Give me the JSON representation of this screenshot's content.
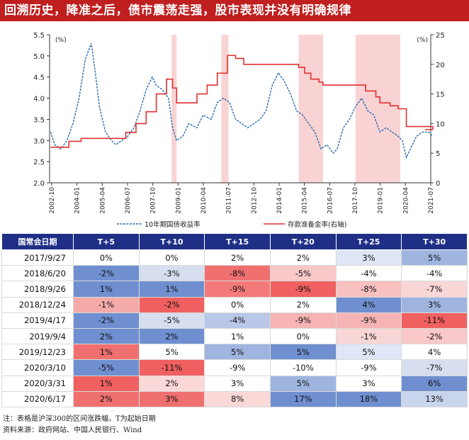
{
  "title": "回溯历史，降准之后，债市震荡走强，股市表现并没有明确规律",
  "chart_data": {
    "type": "line",
    "x_ticks": [
      "2002-10",
      "2004-01",
      "2005-04",
      "2006-07",
      "2007-10",
      "2009-01",
      "2010-04",
      "2011-07",
      "2012-10",
      "2014-01",
      "2015-04",
      "2016-07",
      "2017-10",
      "2019-01",
      "2020-04",
      "2021-07"
    ],
    "y_left": {
      "label": "(%)",
      "min": 2.0,
      "max": 5.5,
      "ticks": [
        "2.0",
        "2.5",
        "3.0",
        "3.5",
        "4.0",
        "4.5",
        "5.0",
        "5.5"
      ]
    },
    "y_right": {
      "label": "(%)",
      "min": 0,
      "max": 25,
      "ticks": [
        "0",
        "5",
        "10",
        "15",
        "20",
        "25"
      ]
    },
    "shaded_periods": [
      [
        2008.75,
        2009.0
      ],
      [
        2011.2,
        2011.55
      ],
      [
        2015.0,
        2016.2
      ],
      [
        2017.8,
        2020.0
      ]
    ],
    "series": [
      {
        "name": "10年期国债收益率",
        "axis": "left",
        "color": "#2b6cb0",
        "style": "dashed",
        "x": [
          2002.8,
          2003.0,
          2003.3,
          2003.6,
          2003.9,
          2004.2,
          2004.5,
          2004.8,
          2005.0,
          2005.2,
          2005.5,
          2005.8,
          2006.0,
          2006.3,
          2006.6,
          2006.9,
          2007.2,
          2007.5,
          2007.8,
          2008.0,
          2008.3,
          2008.6,
          2008.8,
          2009.0,
          2009.3,
          2009.6,
          2010.0,
          2010.3,
          2010.7,
          2011.0,
          2011.3,
          2011.6,
          2011.9,
          2012.2,
          2012.5,
          2012.8,
          2013.1,
          2013.4,
          2013.7,
          2014.0,
          2014.3,
          2014.6,
          2014.9,
          2015.2,
          2015.5,
          2015.8,
          2016.1,
          2016.4,
          2016.7,
          2016.9,
          2017.2,
          2017.5,
          2017.8,
          2018.1,
          2018.4,
          2018.7,
          2019.0,
          2019.3,
          2019.6,
          2019.9,
          2020.1,
          2020.3,
          2020.5,
          2020.8,
          2021.1,
          2021.4,
          2021.6
        ],
        "y": [
          3.2,
          2.9,
          2.8,
          3.0,
          3.4,
          4.0,
          4.9,
          5.3,
          4.6,
          3.8,
          3.2,
          3.0,
          2.9,
          3.0,
          3.1,
          3.3,
          3.7,
          4.2,
          4.5,
          4.3,
          4.2,
          4.0,
          3.3,
          3.0,
          3.1,
          3.4,
          3.3,
          3.6,
          3.5,
          3.9,
          4.0,
          3.9,
          3.5,
          3.4,
          3.3,
          3.4,
          3.5,
          3.7,
          4.3,
          4.6,
          4.4,
          4.1,
          3.7,
          3.6,
          3.4,
          3.2,
          2.8,
          2.9,
          2.7,
          2.8,
          3.3,
          3.5,
          3.8,
          4.0,
          3.7,
          3.6,
          3.2,
          3.3,
          3.2,
          3.1,
          3.0,
          2.6,
          2.8,
          3.1,
          3.2,
          3.2,
          3.1
        ]
      },
      {
        "name": "存款准备金率(右轴)",
        "axis": "right",
        "color": "#e03030",
        "style": "step",
        "x": [
          2002.8,
          2003.7,
          2004.3,
          2006.5,
          2007.0,
          2007.5,
          2008.0,
          2008.5,
          2008.8,
          2009.0,
          2010.0,
          2010.5,
          2011.0,
          2011.5,
          2011.9,
          2012.3,
          2015.0,
          2015.3,
          2015.6,
          2016.0,
          2016.2,
          2018.0,
          2018.3,
          2018.8,
          2019.0,
          2019.5,
          2019.9,
          2020.3,
          2021.6
        ],
        "y": [
          6,
          7,
          7.5,
          8.5,
          10,
          12,
          15,
          17.5,
          16,
          13.5,
          15,
          16.5,
          18.5,
          21.5,
          21,
          20,
          19.5,
          18.5,
          17.5,
          17,
          16.5,
          16.5,
          15.5,
          14.5,
          13.5,
          13,
          12.5,
          9.5,
          9
        ]
      }
    ],
    "legend": [
      "10年期国债收益率",
      "存款准备金率(右轴)"
    ]
  },
  "table": {
    "headers": [
      "国常会日期",
      "T+5",
      "T+10",
      "T+15",
      "T+20",
      "T+25",
      "T+30"
    ],
    "rows": [
      {
        "date": "2017/9/27",
        "vals": [
          "0%",
          "0%",
          "2%",
          "2%",
          "3%",
          "5%"
        ]
      },
      {
        "date": "2018/6/20",
        "vals": [
          "-2%",
          "-3%",
          "-8%",
          "-5%",
          "-4%",
          "-4%"
        ]
      },
      {
        "date": "2018/9/26",
        "vals": [
          "1%",
          "1%",
          "-9%",
          "-9%",
          "-8%",
          "-7%"
        ]
      },
      {
        "date": "2018/12/24",
        "vals": [
          "-1%",
          "-2%",
          "0%",
          "2%",
          "4%",
          "3%"
        ]
      },
      {
        "date": "2019/4/17",
        "vals": [
          "-2%",
          "-5%",
          "-4%",
          "-9%",
          "-9%",
          "-11%"
        ]
      },
      {
        "date": "2019/9/4",
        "vals": [
          "2%",
          "2%",
          "1%",
          "0%",
          "-1%",
          "-2%"
        ]
      },
      {
        "date": "2019/12/23",
        "vals": [
          "1%",
          "5%",
          "5%",
          "5%",
          "5%",
          "4%"
        ]
      },
      {
        "date": "2020/3/10",
        "vals": [
          "-5%",
          "-11%",
          "-9%",
          "-10%",
          "-9%",
          "-7%"
        ]
      },
      {
        "date": "2020/3/31",
        "vals": [
          "1%",
          "2%",
          "3%",
          "5%",
          "3%",
          "6%"
        ]
      },
      {
        "date": "2020/6/17",
        "vals": [
          "2%",
          "3%",
          "8%",
          "17%",
          "18%",
          "13%"
        ]
      }
    ],
    "colors": [
      [
        "#ffffff",
        "#ffffff",
        "#ffffff",
        "#ffffff",
        "#dfe6f5",
        "#9fb5e0"
      ],
      [
        "#6f8fd0",
        "#d6deef",
        "#f07070",
        "#f9c8c8",
        "#ffffff",
        "#ffffff"
      ],
      [
        "#6f8fd0",
        "#6f8fd0",
        "#f47a7a",
        "#f06060",
        "#f9c0c0",
        "#f9d6d6"
      ],
      [
        "#f5aaaa",
        "#f06060",
        "#ffffff",
        "#ffffff",
        "#6f8fd0",
        "#9fb5e0"
      ],
      [
        "#6f8fd0",
        "#d6deef",
        "#b9c8e8",
        "#f7b4b4",
        "#f7b4b4",
        "#f06060"
      ],
      [
        "#6f8fd0",
        "#6f8fd0",
        "#ffffff",
        "#ffffff",
        "#f9d6d6",
        "#f9c8c8"
      ],
      [
        "#f07070",
        "#ffffff",
        "#9fb5e0",
        "#6f8fd0",
        "#dfe6f5",
        "#ffffff"
      ],
      [
        "#6f8fd0",
        "#f06060",
        "#ffffff",
        "#ffffff",
        "#ffffff",
        "#d6deef"
      ],
      [
        "#f06060",
        "#fbd8d8",
        "#ffffff",
        "#9fb5e0",
        "#ffffff",
        "#6f8fd0"
      ],
      [
        "#f07070",
        "#f07070",
        "#fbd8d8",
        "#6f8fd0",
        "#6f8fd0",
        "#c9d4ed"
      ]
    ]
  },
  "notes": [
    "注：表格是沪深300的区间涨跌幅，T为起始日期",
    "资料来源：政府网站、中国人民银行、Wind"
  ]
}
